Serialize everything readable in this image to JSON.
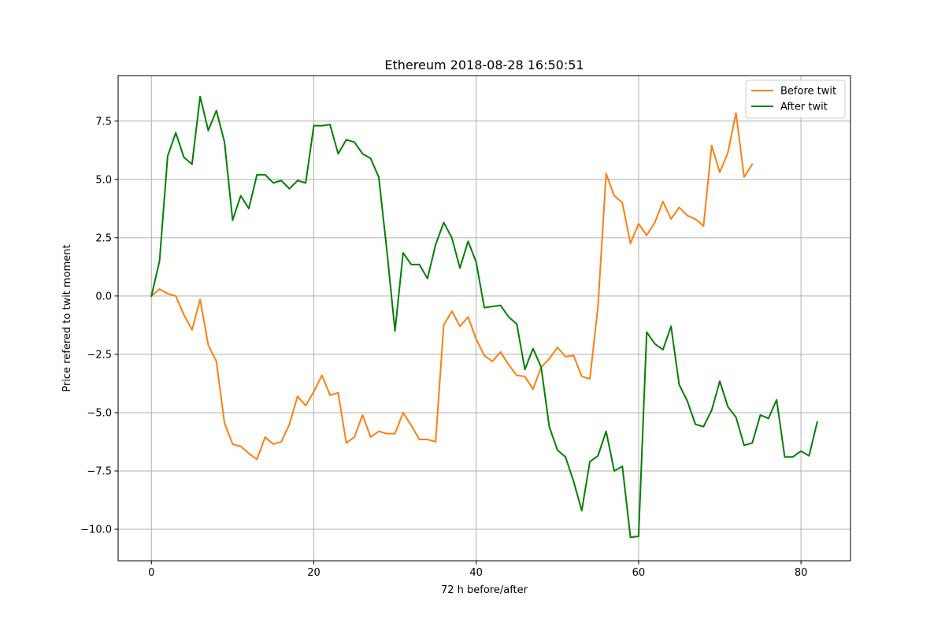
{
  "chart_data": {
    "type": "line",
    "title": "Ethereum 2018-08-28 16:50:51",
    "xlabel": "72 h before/after",
    "ylabel": "Price refered to twit moment",
    "xlim": [
      -4.1,
      86.1
    ],
    "ylim": [
      -11.35,
      9.45
    ],
    "xticks": [
      0,
      20,
      40,
      60,
      80
    ],
    "yticks": [
      -10.0,
      -7.5,
      -5.0,
      -2.5,
      0.0,
      2.5,
      5.0,
      7.5
    ],
    "xtick_labels": [
      "0",
      "20",
      "40",
      "60",
      "80"
    ],
    "ytick_labels": [
      "−10.0",
      "−7.5",
      "−5.0",
      "−2.5",
      "0.0",
      "2.5",
      "5.0",
      "7.5"
    ],
    "grid": true,
    "legend_position": "top-right",
    "series": [
      {
        "name": "Before twit",
        "color": "#ff7f0e",
        "x_start": 0,
        "values": [
          0.0,
          0.3,
          0.1,
          0.0,
          -0.8,
          -1.45,
          -0.15,
          -2.1,
          -2.8,
          -5.45,
          -6.35,
          -6.45,
          -6.75,
          -7.0,
          -6.05,
          -6.35,
          -6.25,
          -5.5,
          -4.3,
          -4.7,
          -4.1,
          -3.4,
          -4.25,
          -4.15,
          -6.3,
          -6.05,
          -5.1,
          -6.05,
          -5.8,
          -5.9,
          -5.9,
          -5.0,
          -5.55,
          -6.15,
          -6.15,
          -6.25,
          -1.25,
          -0.65,
          -1.3,
          -0.9,
          -1.85,
          -2.55,
          -2.8,
          -2.4,
          -2.95,
          -3.4,
          -3.45,
          -4.0,
          -3.05,
          -2.7,
          -2.2,
          -2.6,
          -2.55,
          -3.45,
          -3.55,
          -0.45,
          5.25,
          4.3,
          4.0,
          2.25,
          3.1,
          2.6,
          3.15,
          4.05,
          3.3,
          3.8,
          3.45,
          3.3,
          3.0,
          6.45,
          5.3,
          6.15,
          7.85,
          5.1,
          5.65
        ]
      },
      {
        "name": "After twit",
        "color": "#008000",
        "x_start": 0,
        "values": [
          0.0,
          1.5,
          6.0,
          7.0,
          5.95,
          5.65,
          8.55,
          7.1,
          7.95,
          6.6,
          3.25,
          4.3,
          3.75,
          5.2,
          5.2,
          4.85,
          4.95,
          4.6,
          4.95,
          4.85,
          7.3,
          7.3,
          7.35,
          6.1,
          6.7,
          6.6,
          6.1,
          5.9,
          5.1,
          1.95,
          -1.5,
          1.85,
          1.35,
          1.35,
          0.75,
          2.2,
          3.15,
          2.5,
          1.2,
          2.35,
          1.45,
          -0.5,
          -0.45,
          -0.4,
          -0.9,
          -1.2,
          -3.15,
          -2.25,
          -3.05,
          -5.6,
          -6.6,
          -6.9,
          -7.95,
          -9.2,
          -7.1,
          -6.85,
          -5.8,
          -7.5,
          -7.3,
          -10.35,
          -10.3,
          -1.55,
          -2.05,
          -2.3,
          -1.3,
          -3.8,
          -4.5,
          -5.5,
          -5.6,
          -4.9,
          -3.65,
          -4.75,
          -5.2,
          -6.4,
          -6.3,
          -5.1,
          -5.25,
          -4.45,
          -6.9,
          -6.9,
          -6.65,
          -6.85,
          -5.4
        ]
      }
    ]
  }
}
